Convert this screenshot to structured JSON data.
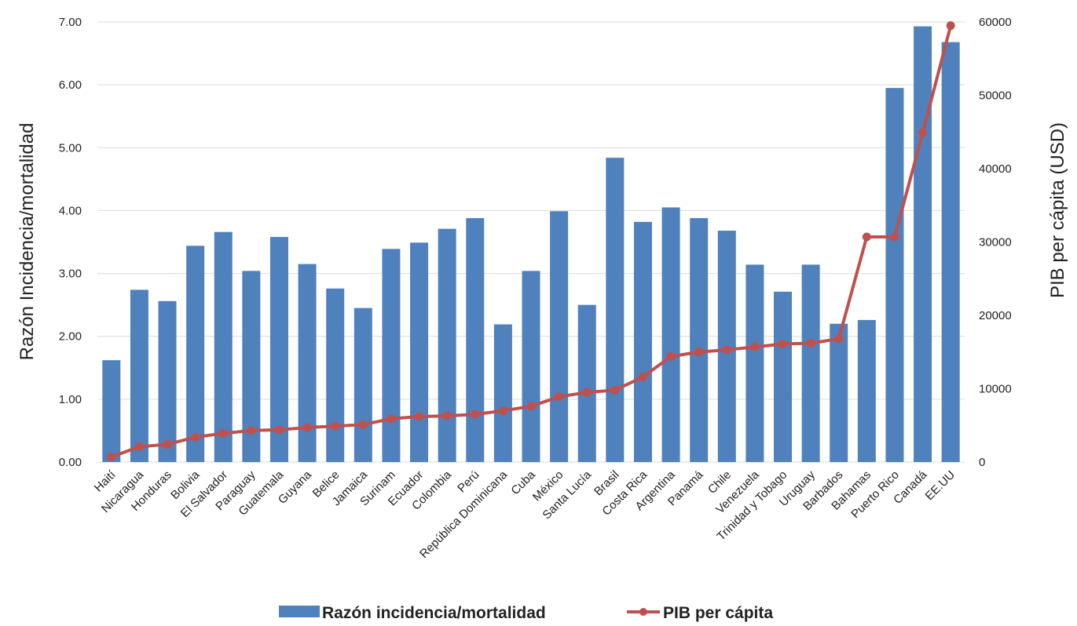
{
  "chart_data": {
    "type": "bar",
    "categories": [
      "Haití",
      "Nicaragua",
      "Honduras",
      "Bolivia",
      "El Salvador",
      "Paraguay",
      "Guatemala",
      "Guyana",
      "Belice",
      "Jamaica",
      "Surinam",
      "Ecuador",
      "Colombia",
      "Perú",
      "República Dominicana",
      "Cuba",
      "México",
      "Santa Lucía",
      "Brasil",
      "Costa Rica",
      "Argentina",
      "Panamá",
      "Chile",
      "Venezuela",
      "Trinidad y Tobago",
      "Uruguay",
      "Barbados",
      "Bahamas",
      "Puerto Rico",
      "Canadá",
      "EE.UU"
    ],
    "series": [
      {
        "name": "Razón incidencia/mortalidad",
        "type": "bar",
        "axis": "left",
        "color": "#4f81bd",
        "values": [
          1.62,
          2.74,
          2.56,
          3.44,
          3.66,
          3.04,
          3.58,
          3.15,
          2.76,
          2.45,
          3.39,
          3.49,
          3.71,
          3.88,
          2.19,
          3.04,
          3.99,
          2.5,
          4.84,
          3.82,
          4.05,
          3.88,
          3.68,
          3.14,
          2.71,
          3.14,
          2.2,
          2.26,
          5.95,
          6.93,
          6.68
        ]
      },
      {
        "name": "PIB per cápita",
        "type": "line",
        "axis": "right",
        "color": "#c0504d",
        "values": [
          700,
          2100,
          2400,
          3400,
          3900,
          4300,
          4400,
          4700,
          4900,
          5100,
          5900,
          6200,
          6300,
          6500,
          7000,
          7600,
          8900,
          9500,
          9800,
          11600,
          14400,
          15000,
          15300,
          15700,
          16100,
          16200,
          16800,
          30700,
          30700,
          44900,
          59500
        ]
      }
    ],
    "title": "",
    "ylabel": "Razón Incidencia/mortalidad",
    "y2label": "PIB per cápita  (USD)",
    "ylim": [
      0,
      7
    ],
    "y2lim": [
      0,
      60000
    ],
    "yticks": [
      "0.00",
      "1.00",
      "2.00",
      "3.00",
      "4.00",
      "5.00",
      "6.00",
      "7.00"
    ],
    "y2ticks": [
      "0",
      "10000",
      "20000",
      "30000",
      "40000",
      "50000",
      "60000"
    ],
    "grid": true,
    "legend_position": "bottom"
  }
}
